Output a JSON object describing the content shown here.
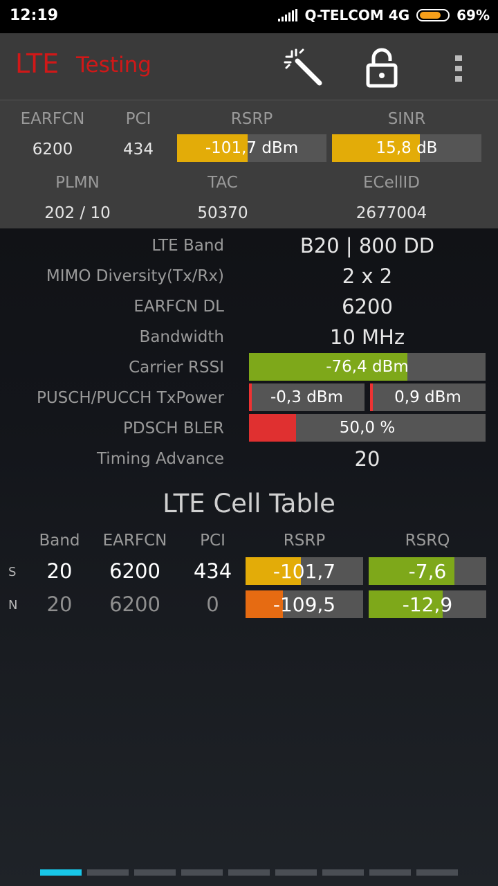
{
  "status_bar": {
    "time": "12:19",
    "carrier": "Q-TELCOM 4G",
    "battery": "69%"
  },
  "app_bar": {
    "title_lte": "LTE",
    "title_testing": "Testing",
    "icons": [
      "magic-wand-icon",
      "unlock-icon",
      "more-vert-icon"
    ]
  },
  "summary": {
    "earfcn_label": "EARFCN",
    "earfcn": "6200",
    "pci_label": "PCI",
    "pci": "434",
    "rsrp_label": "RSRP",
    "rsrp": "-101,7 dBm",
    "rsrp_level": 0.47,
    "sinr_label": "SINR",
    "sinr": "15,8 dB",
    "sinr_level": 0.59,
    "plmn_label": "PLMN",
    "plmn": "202 / 10",
    "tac_label": "TAC",
    "tac": "50370",
    "ecellid_label": "ECellID",
    "ecellid": "2677004"
  },
  "details": {
    "band_label": "LTE Band",
    "band": "B20 | 800 DD",
    "mimo_label": "MIMO Diversity(Tx/Rx)",
    "mimo": "2 x 2",
    "earfcn_dl_label": "EARFCN DL",
    "earfcn_dl": "6200",
    "bandwidth_label": "Bandwidth",
    "bandwidth": "10 MHz",
    "rssi_label": "Carrier RSSI",
    "rssi": "-76,4 dBm",
    "rssi_level": 0.67,
    "txpower_label": "PUSCH/PUCCH TxPower",
    "pusch": "-0,3 dBm",
    "pucch": "0,9 dBm",
    "bler_label": "PDSCH BLER",
    "bler": "50,0 %",
    "bler_level": 0.2,
    "ta_label": "Timing Advance",
    "ta": "20"
  },
  "cell_table": {
    "title": "LTE Cell Table",
    "headers": [
      "Band",
      "EARFCN",
      "PCI",
      "RSRP",
      "RSRQ"
    ],
    "rows": [
      {
        "tag": "S",
        "band": "20",
        "earfcn": "6200",
        "pci": "434",
        "rsrp": "-101,7",
        "rsrp_level": 0.47,
        "rsrp_color": "#e3ac08",
        "rsrq": "-7,6",
        "rsrq_level": 0.73,
        "rsrq_color": "#7ea81a"
      },
      {
        "tag": "N",
        "band": "20",
        "earfcn": "6200",
        "pci": "0",
        "rsrp": "-109,5",
        "rsrp_level": 0.32,
        "rsrp_color": "#e66b12",
        "rsrq": "-12,9",
        "rsrq_level": 0.63,
        "rsrq_color": "#7ea81a"
      }
    ]
  },
  "colors": {
    "accent": "#d01818",
    "yellow": "#e3ac08",
    "green": "#7ea81a",
    "red": "#e03030",
    "orange": "#e66b12",
    "pager_active": "#18c6e8"
  },
  "pager": {
    "pages": 9,
    "active": 0
  }
}
